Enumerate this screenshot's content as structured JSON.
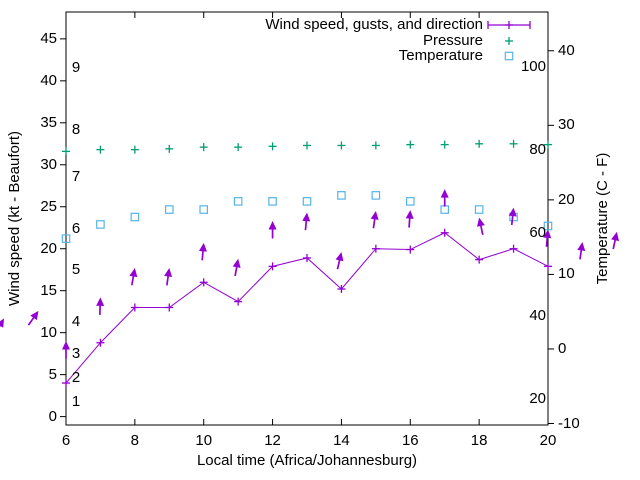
{
  "colors": {
    "wind": "#9400d3",
    "pressure": "#009e73",
    "temperature": "#56b4e9",
    "axis": "#000000",
    "background": "#ffffff"
  },
  "legend": {
    "items": [
      {
        "label": "Wind speed, gusts, and direction",
        "series": "wind"
      },
      {
        "label": "Pressure",
        "series": "pressure"
      },
      {
        "label": "Temperature",
        "series": "temperature"
      }
    ]
  },
  "axes": {
    "x": {
      "title": "Local time (Africa/Johannesburg)",
      "min": 6,
      "max": 20,
      "tick_labels": [
        6,
        8,
        10,
        12,
        14,
        16,
        18,
        20
      ]
    },
    "y_left": {
      "title": "Wind speed (kt - Beaufort)",
      "tick_labels": [
        0,
        5,
        10,
        15,
        20,
        25,
        30,
        35,
        40,
        45
      ],
      "beaufort_labels": [
        {
          "label": "1",
          "kt": 1.7
        },
        {
          "label": "2",
          "kt": 4.6
        },
        {
          "label": "3",
          "kt": 7.4
        },
        {
          "label": "4",
          "kt": 11.3
        },
        {
          "label": "5",
          "kt": 17.5
        },
        {
          "label": "6",
          "kt": 22.3
        },
        {
          "label": "7",
          "kt": 28.5
        },
        {
          "label": "8",
          "kt": 34.2
        },
        {
          "label": "9",
          "kt": 41.5
        }
      ]
    },
    "y_right": {
      "title": "Temperature (C - F)",
      "tick_labels_c": [
        -10,
        0,
        10,
        20,
        30,
        40
      ],
      "inner_labels_f": [
        20,
        40,
        60,
        80,
        100
      ]
    }
  },
  "chart_data": {
    "type": "line",
    "title": "",
    "x_hours": [
      6,
      7,
      8,
      9,
      10,
      11,
      12,
      13,
      14,
      15,
      16,
      17,
      18,
      19,
      20
    ],
    "series": [
      {
        "key": "wind",
        "name": "Wind speed, gusts, and direction",
        "unit": "kt",
        "marker": "plus",
        "line": true,
        "values": [
          4.0,
          8.8,
          13.0,
          13.0,
          16.0,
          13.7,
          17.9,
          18.9,
          15.2,
          20.0,
          19.9,
          21.9,
          18.7,
          20.0,
          17.9
        ]
      },
      {
        "key": "pressure",
        "name": "Pressure",
        "unit": "kt-axis-units",
        "marker": "plus",
        "line": false,
        "values": [
          31.6,
          31.8,
          31.8,
          31.9,
          32.1,
          32.1,
          32.2,
          32.3,
          32.3,
          32.3,
          32.4,
          32.4,
          32.5,
          32.5,
          32.4
        ]
      },
      {
        "key": "temperature",
        "name": "Temperature",
        "unit": "C",
        "marker": "square",
        "line": false,
        "values": [
          14.8,
          16.7,
          17.7,
          18.7,
          18.7,
          19.8,
          19.8,
          19.8,
          20.6,
          20.6,
          19.8,
          18.7,
          18.7,
          17.7,
          16.5
        ]
      }
    ],
    "wind_direction_arrows": [
      {
        "hour": 4.2,
        "gust_kt": 11.7,
        "angle_deg": 30
      },
      {
        "hour": 5.2,
        "gust_kt": 12.6,
        "angle_deg": 35
      },
      {
        "hour": 6,
        "gust_kt": 9.0,
        "angle_deg": 0
      },
      {
        "hour": 7,
        "gust_kt": 14.2,
        "angle_deg": 2
      },
      {
        "hour": 8,
        "gust_kt": 17.7,
        "angle_deg": 10
      },
      {
        "hour": 9,
        "gust_kt": 17.7,
        "angle_deg": 8
      },
      {
        "hour": 10,
        "gust_kt": 20.7,
        "angle_deg": 5
      },
      {
        "hour": 11,
        "gust_kt": 18.8,
        "angle_deg": 10
      },
      {
        "hour": 12,
        "gust_kt": 23.3,
        "angle_deg": 0
      },
      {
        "hour": 13,
        "gust_kt": 24.3,
        "angle_deg": 5
      },
      {
        "hour": 14,
        "gust_kt": 19.6,
        "angle_deg": 13
      },
      {
        "hour": 15,
        "gust_kt": 24.5,
        "angle_deg": 8
      },
      {
        "hour": 16,
        "gust_kt": 24.6,
        "angle_deg": 4
      },
      {
        "hour": 17,
        "gust_kt": 27.1,
        "angle_deg": 0
      },
      {
        "hour": 18,
        "gust_kt": 23.7,
        "angle_deg": -12
      },
      {
        "hour": 19,
        "gust_kt": 24.9,
        "angle_deg": 6
      },
      {
        "hour": 20,
        "gust_kt": 22.3,
        "angle_deg": 5
      },
      {
        "hour": 21,
        "gust_kt": 20.8,
        "angle_deg": 8
      },
      {
        "hour": 22,
        "gust_kt": 22.0,
        "angle_deg": 12
      }
    ],
    "axis_ranges": {
      "x": [
        6,
        20
      ],
      "y_left_kt": [
        -1,
        48.2
      ],
      "y_right_c": [
        -10.2,
        45.2
      ]
    },
    "grid": false,
    "legend_position": "top-right-inside"
  }
}
